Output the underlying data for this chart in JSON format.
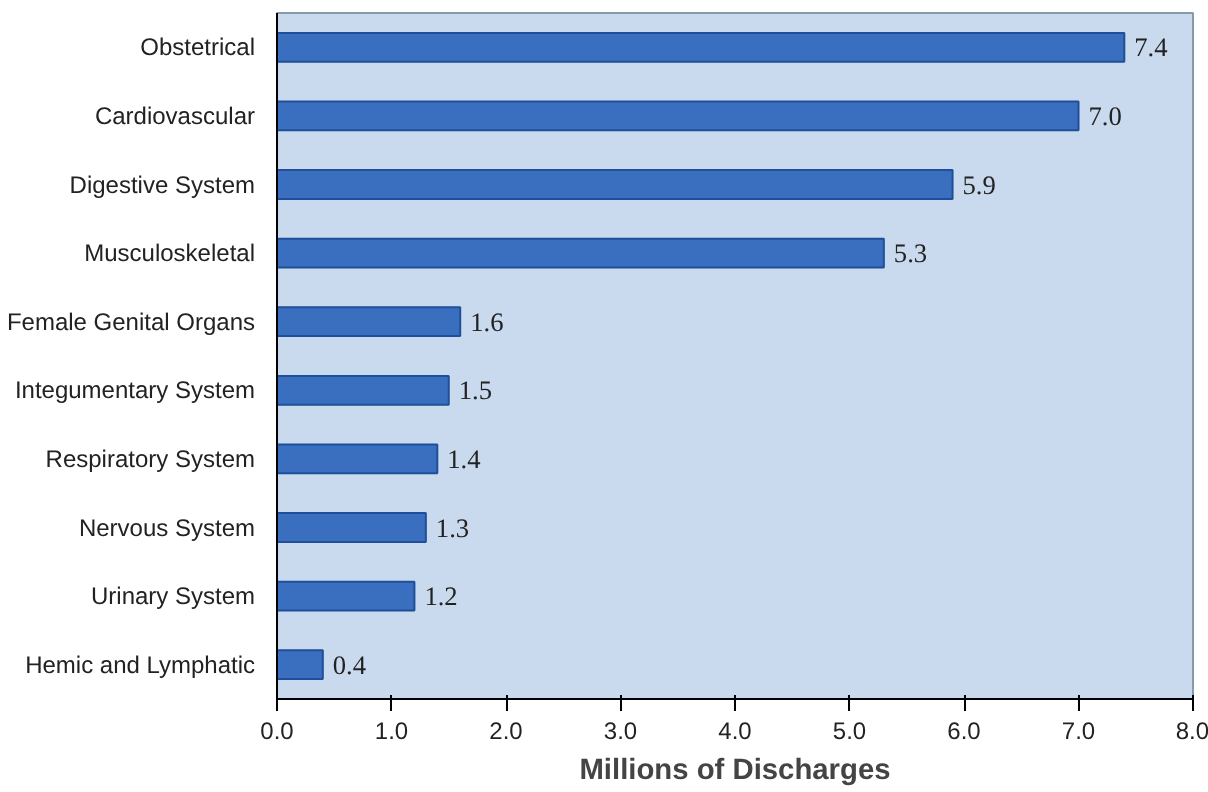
{
  "chart_data": {
    "type": "bar",
    "orientation": "horizontal",
    "xlabel": "Millions of Discharges",
    "categories": [
      "Obstetrical",
      "Cardiovascular",
      "Digestive System",
      "Musculoskeletal",
      "Female Genital Organs",
      "Integumentary System",
      "Respiratory System",
      "Nervous System",
      "Urinary System",
      "Hemic and Lymphatic"
    ],
    "values": [
      7.4,
      7.0,
      5.9,
      5.3,
      1.6,
      1.5,
      1.4,
      1.3,
      1.2,
      0.4
    ],
    "value_labels": [
      "7.4",
      "7.0",
      "5.9",
      "5.3",
      "1.6",
      "1.5",
      "1.4",
      "1.3",
      "1.2",
      "0.4"
    ],
    "color": "#3a6fc0",
    "xlim": [
      0,
      8
    ],
    "xticks": [
      {
        "value": 0,
        "label": "0.0"
      },
      {
        "value": 1,
        "label": "1.0"
      },
      {
        "value": 2,
        "label": "2.0"
      },
      {
        "value": 3,
        "label": "3.0"
      },
      {
        "value": 4,
        "label": "4.0"
      },
      {
        "value": 5,
        "label": "5.0"
      },
      {
        "value": 6,
        "label": "6.0"
      },
      {
        "value": 7,
        "label": "7.0"
      },
      {
        "value": 8,
        "label": "8.0"
      }
    ],
    "grid": false
  }
}
